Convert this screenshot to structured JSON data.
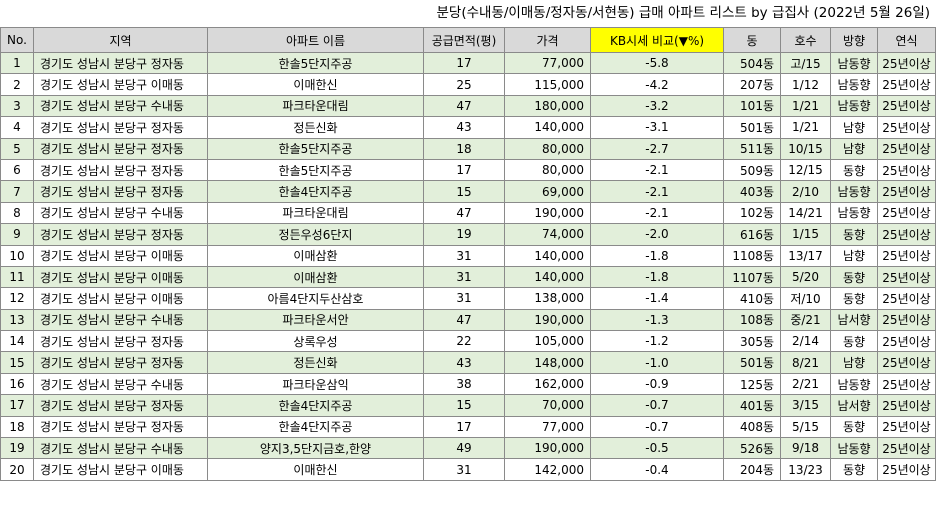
{
  "title": "분당(수내동/이매동/정자동/서현동) 급매 아파트 리스트 by 급집사 (2022년 5월 26일)",
  "columns": [
    "No.",
    "지역",
    "아파트 이름",
    "공급면적(평)",
    "가격",
    "KB시세 비교(▼%)",
    "동",
    "호수",
    "방향",
    "연식"
  ],
  "highlight_color": "#ffff00",
  "alt_row_color": "#e2efda",
  "rows": [
    [
      "1",
      "경기도 성남시 분당구 정자동",
      "한솔5단지주공",
      "17",
      "77,000",
      "-5.8",
      "504동",
      "고/15",
      "남동향",
      "25년이상"
    ],
    [
      "2",
      "경기도 성남시 분당구 이매동",
      "이매한신",
      "25",
      "115,000",
      "-4.2",
      "207동",
      "1/12",
      "남동향",
      "25년이상"
    ],
    [
      "3",
      "경기도 성남시 분당구 수내동",
      "파크타운대림",
      "47",
      "180,000",
      "-3.2",
      "101동",
      "1/21",
      "남동향",
      "25년이상"
    ],
    [
      "4",
      "경기도 성남시 분당구 정자동",
      "정든신화",
      "43",
      "140,000",
      "-3.1",
      "501동",
      "1/21",
      "남향",
      "25년이상"
    ],
    [
      "5",
      "경기도 성남시 분당구 정자동",
      "한솔5단지주공",
      "18",
      "80,000",
      "-2.7",
      "511동",
      "10/15",
      "남향",
      "25년이상"
    ],
    [
      "6",
      "경기도 성남시 분당구 정자동",
      "한솔5단지주공",
      "17",
      "80,000",
      "-2.1",
      "509동",
      "12/15",
      "동향",
      "25년이상"
    ],
    [
      "7",
      "경기도 성남시 분당구 정자동",
      "한솔4단지주공",
      "15",
      "69,000",
      "-2.1",
      "403동",
      "2/10",
      "남동향",
      "25년이상"
    ],
    [
      "8",
      "경기도 성남시 분당구 수내동",
      "파크타운대림",
      "47",
      "190,000",
      "-2.1",
      "102동",
      "14/21",
      "남동향",
      "25년이상"
    ],
    [
      "9",
      "경기도 성남시 분당구 정자동",
      "정든우성6단지",
      "19",
      "74,000",
      "-2.0",
      "616동",
      "1/15",
      "동향",
      "25년이상"
    ],
    [
      "10",
      "경기도 성남시 분당구 이매동",
      "이매삼환",
      "31",
      "140,000",
      "-1.8",
      "1108동",
      "13/17",
      "남향",
      "25년이상"
    ],
    [
      "11",
      "경기도 성남시 분당구 이매동",
      "이매삼환",
      "31",
      "140,000",
      "-1.8",
      "1107동",
      "5/20",
      "동향",
      "25년이상"
    ],
    [
      "12",
      "경기도 성남시 분당구 이매동",
      "아름4단지두산삼호",
      "31",
      "138,000",
      "-1.4",
      "410동",
      "저/10",
      "동향",
      "25년이상"
    ],
    [
      "13",
      "경기도 성남시 분당구 수내동",
      "파크타운서안",
      "47",
      "190,000",
      "-1.3",
      "108동",
      "중/21",
      "남서향",
      "25년이상"
    ],
    [
      "14",
      "경기도 성남시 분당구 정자동",
      "상록우성",
      "22",
      "105,000",
      "-1.2",
      "305동",
      "2/14",
      "동향",
      "25년이상"
    ],
    [
      "15",
      "경기도 성남시 분당구 정자동",
      "정든신화",
      "43",
      "148,000",
      "-1.0",
      "501동",
      "8/21",
      "남향",
      "25년이상"
    ],
    [
      "16",
      "경기도 성남시 분당구 수내동",
      "파크타운삼익",
      "38",
      "162,000",
      "-0.9",
      "125동",
      "2/21",
      "남동향",
      "25년이상"
    ],
    [
      "17",
      "경기도 성남시 분당구 정자동",
      "한솔4단지주공",
      "15",
      "70,000",
      "-0.7",
      "401동",
      "3/15",
      "남서향",
      "25년이상"
    ],
    [
      "18",
      "경기도 성남시 분당구 정자동",
      "한솔4단지주공",
      "17",
      "77,000",
      "-0.7",
      "408동",
      "5/15",
      "동향",
      "25년이상"
    ],
    [
      "19",
      "경기도 성남시 분당구 수내동",
      "양지3,5단지금호,한양",
      "49",
      "190,000",
      "-0.5",
      "526동",
      "9/18",
      "남동향",
      "25년이상"
    ],
    [
      "20",
      "경기도 성남시 분당구 이매동",
      "이매한신",
      "31",
      "142,000",
      "-0.4",
      "204동",
      "13/23",
      "동향",
      "25년이상"
    ]
  ]
}
